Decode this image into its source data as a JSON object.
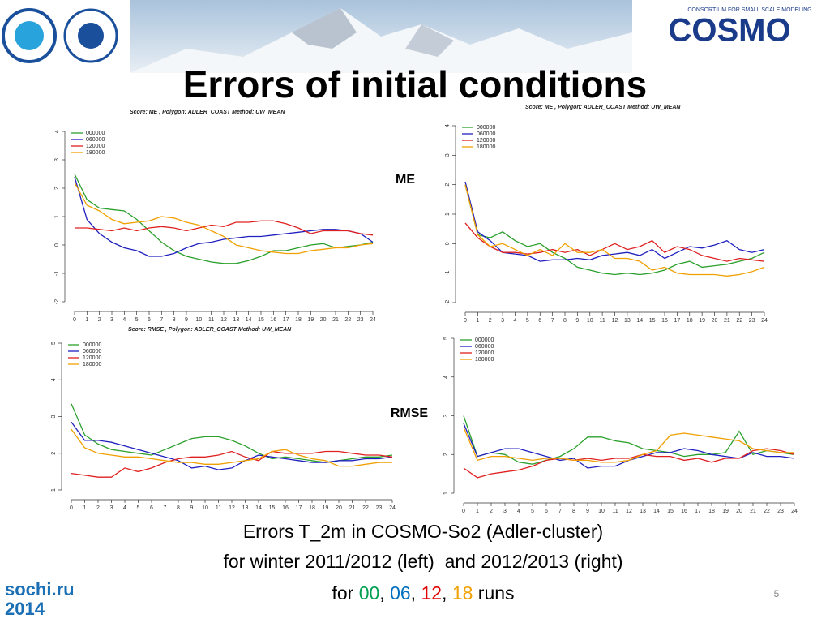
{
  "slide": {
    "title": "Errors of initial conditions",
    "label_me": "ME",
    "label_rmse": "RMSE",
    "caption_line1": "Errors T_2m in COSMO-So2 (Adler-cluster)",
    "caption_line2": "for winter 2011/2012 (left)  and 2012/2013 (right)",
    "caption_line3": {
      "parts": [
        "for ",
        "00",
        ", ",
        "06",
        ", ",
        "12",
        ", ",
        "18",
        " runs"
      ],
      "colors": [
        null,
        "#00a050",
        null,
        "#0070c0",
        null,
        "#e00000",
        null,
        "#f0a000",
        null
      ]
    },
    "page_number": "5",
    "logo_cosmo": "COSMO",
    "logo_cosmo_sub": "CONSORTIUM FOR SMALL SCALE MODELING",
    "logo_sochi": "sochi.ru",
    "logo_sochi_year": "2014"
  },
  "chart_data": [
    {
      "type": "line",
      "title": "Score: ME , Polygon: ADLER_COAST Method: UW_MEAN",
      "x": [
        0,
        1,
        2,
        3,
        4,
        5,
        6,
        7,
        8,
        9,
        10,
        11,
        12,
        13,
        14,
        15,
        16,
        17,
        18,
        19,
        20,
        21,
        22,
        23,
        24
      ],
      "xlim": [
        0,
        24
      ],
      "xticks": [
        0,
        1,
        2,
        3,
        4,
        5,
        6,
        7,
        8,
        9,
        10,
        11,
        12,
        13,
        14,
        15,
        16,
        17,
        18,
        19,
        20,
        21,
        22,
        23,
        24
      ],
      "ylim": [
        -2,
        4
      ],
      "yticks": [
        -2,
        -1,
        0,
        1,
        2,
        3,
        4
      ],
      "series": [
        {
          "name": "000000",
          "color": "#2ca02c",
          "values": [
            2.5,
            1.6,
            1.3,
            1.25,
            1.2,
            0.9,
            0.5,
            0.1,
            -0.2,
            -0.4,
            -0.5,
            -0.6,
            -0.65,
            -0.65,
            -0.55,
            -0.4,
            -0.2,
            -0.2,
            -0.1,
            0,
            0.05,
            -0.1,
            -0.05,
            0,
            0.1
          ]
        },
        {
          "name": "060000",
          "color": "#2020c0",
          "values": [
            2.4,
            0.9,
            0.4,
            0.1,
            -0.1,
            -0.2,
            -0.4,
            -0.4,
            -0.3,
            -0.1,
            0.05,
            0.1,
            0.2,
            0.25,
            0.3,
            0.3,
            0.35,
            0.4,
            0.45,
            0.5,
            0.55,
            0.55,
            0.5,
            0.4,
            0.1
          ]
        },
        {
          "name": "120000",
          "color": "#e02020",
          "values": [
            0.6,
            0.6,
            0.55,
            0.5,
            0.6,
            0.5,
            0.6,
            0.65,
            0.6,
            0.5,
            0.6,
            0.7,
            0.65,
            0.8,
            0.8,
            0.85,
            0.85,
            0.75,
            0.6,
            0.4,
            0.5,
            0.5,
            0.5,
            0.4,
            0.35
          ]
        },
        {
          "name": "180000",
          "color": "#f0a000",
          "values": [
            2.2,
            1.4,
            1.2,
            0.9,
            0.75,
            0.8,
            0.85,
            1.0,
            0.95,
            0.8,
            0.7,
            0.5,
            0.3,
            0.0,
            -0.1,
            -0.2,
            -0.25,
            -0.3,
            -0.3,
            -0.2,
            -0.15,
            -0.1,
            -0.1,
            0.0,
            0.05
          ]
        }
      ]
    },
    {
      "type": "line",
      "title": "Score: ME , Polygon: ADLER_COAST Method: UW_MEAN",
      "x": [
        0,
        1,
        2,
        3,
        4,
        5,
        6,
        7,
        8,
        9,
        10,
        11,
        12,
        13,
        14,
        15,
        16,
        17,
        18,
        19,
        20,
        21,
        22,
        23,
        24
      ],
      "xlim": [
        0,
        24
      ],
      "xticks": [
        0,
        1,
        2,
        3,
        4,
        5,
        6,
        7,
        8,
        9,
        10,
        11,
        12,
        13,
        14,
        15,
        16,
        17,
        18,
        19,
        20,
        21,
        22,
        23,
        24
      ],
      "ylim": [
        -2,
        4
      ],
      "yticks": [
        -2,
        -1,
        0,
        1,
        2,
        3,
        4
      ],
      "series": [
        {
          "name": "000000",
          "color": "#2ca02c",
          "values": [
            2.0,
            0.3,
            0.2,
            0.4,
            0.1,
            -0.1,
            0,
            -0.3,
            -0.5,
            -0.8,
            -0.9,
            -1.0,
            -1.05,
            -1.0,
            -1.05,
            -1.0,
            -0.9,
            -0.7,
            -0.6,
            -0.8,
            -0.75,
            -0.7,
            -0.6,
            -0.5,
            -0.3
          ]
        },
        {
          "name": "060000",
          "color": "#2020c0",
          "values": [
            2.1,
            0.4,
            0.1,
            -0.3,
            -0.35,
            -0.4,
            -0.6,
            -0.55,
            -0.55,
            -0.5,
            -0.55,
            -0.4,
            -0.35,
            -0.3,
            -0.4,
            -0.2,
            -0.5,
            -0.3,
            -0.1,
            -0.15,
            -0.05,
            0.1,
            -0.2,
            -0.3,
            -0.2
          ]
        },
        {
          "name": "120000",
          "color": "#e02020",
          "values": [
            0.7,
            0.2,
            -0.1,
            -0.3,
            -0.3,
            -0.35,
            -0.3,
            -0.2,
            -0.3,
            -0.2,
            -0.4,
            -0.2,
            0,
            -0.2,
            -0.1,
            0.1,
            -0.3,
            -0.1,
            -0.2,
            -0.4,
            -0.5,
            -0.6,
            -0.5,
            -0.55,
            -0.6
          ]
        },
        {
          "name": "180000",
          "color": "#f0a000",
          "values": [
            2.0,
            0.3,
            -0.1,
            0,
            -0.2,
            -0.4,
            -0.2,
            -0.4,
            0.0,
            -0.3,
            -0.3,
            -0.2,
            -0.5,
            -0.5,
            -0.6,
            -0.9,
            -0.8,
            -1.0,
            -1.05,
            -1.05,
            -1.05,
            -1.1,
            -1.05,
            -0.95,
            -0.8
          ]
        }
      ]
    },
    {
      "type": "line",
      "title": "Score: RMSE , Polygon: ADLER_COAST Method: UW_MEAN",
      "x": [
        0,
        1,
        2,
        3,
        4,
        5,
        6,
        7,
        8,
        9,
        10,
        11,
        12,
        13,
        14,
        15,
        16,
        17,
        18,
        19,
        20,
        21,
        22,
        23,
        24
      ],
      "xlim": [
        0,
        24
      ],
      "xticks": [
        0,
        1,
        2,
        3,
        4,
        5,
        6,
        7,
        8,
        9,
        10,
        11,
        12,
        13,
        14,
        15,
        16,
        17,
        18,
        19,
        20,
        21,
        22,
        23,
        24
      ],
      "ylim": [
        1,
        5
      ],
      "yticks": [
        1,
        2,
        3,
        4,
        5
      ],
      "series": [
        {
          "name": "000000",
          "color": "#2ca02c",
          "values": [
            3.35,
            2.5,
            2.25,
            2.1,
            2.05,
            2.0,
            1.95,
            2.1,
            2.25,
            2.4,
            2.45,
            2.45,
            2.35,
            2.2,
            2.0,
            1.85,
            1.9,
            1.85,
            1.8,
            1.75,
            1.8,
            1.85,
            1.9,
            1.9,
            1.95
          ]
        },
        {
          "name": "060000",
          "color": "#2020c0",
          "values": [
            2.85,
            2.35,
            2.35,
            2.3,
            2.2,
            2.1,
            2.0,
            1.9,
            1.8,
            1.6,
            1.65,
            1.55,
            1.6,
            1.8,
            1.95,
            1.9,
            1.85,
            1.8,
            1.75,
            1.75,
            1.8,
            1.8,
            1.85,
            1.85,
            1.9
          ]
        },
        {
          "name": "120000",
          "color": "#e02020",
          "values": [
            1.45,
            1.4,
            1.35,
            1.35,
            1.6,
            1.5,
            1.6,
            1.75,
            1.85,
            1.9,
            1.9,
            1.95,
            2.05,
            1.9,
            1.8,
            2.05,
            2.0,
            2.0,
            2.0,
            2.05,
            2.05,
            2.0,
            1.95,
            1.95,
            1.9
          ]
        },
        {
          "name": "180000",
          "color": "#f0a000",
          "values": [
            2.65,
            2.15,
            2.0,
            1.95,
            1.9,
            1.9,
            1.85,
            1.8,
            1.75,
            1.75,
            1.7,
            1.7,
            1.75,
            1.8,
            1.85,
            2.05,
            2.1,
            1.95,
            1.85,
            1.8,
            1.65,
            1.65,
            1.7,
            1.75,
            1.75
          ]
        }
      ]
    },
    {
      "type": "line",
      "x": [
        0,
        1,
        2,
        3,
        4,
        5,
        6,
        7,
        8,
        9,
        10,
        11,
        12,
        13,
        14,
        15,
        16,
        17,
        18,
        19,
        20,
        21,
        22,
        23,
        24
      ],
      "xlim": [
        0,
        24
      ],
      "xticks": [
        0,
        1,
        2,
        3,
        4,
        5,
        6,
        7,
        8,
        9,
        10,
        11,
        12,
        13,
        14,
        15,
        16,
        17,
        18,
        19,
        20,
        21,
        22,
        23,
        24
      ],
      "ylim": [
        1,
        5
      ],
      "yticks": [
        1,
        2,
        3,
        4,
        5
      ],
      "series": [
        {
          "name": "000000",
          "color": "#2ca02c",
          "values": [
            3.0,
            1.95,
            2.05,
            2.0,
            1.8,
            1.75,
            1.85,
            1.95,
            2.15,
            2.45,
            2.45,
            2.35,
            2.3,
            2.15,
            2.1,
            2.05,
            1.95,
            2.0,
            2.0,
            2.05,
            2.6,
            2.0,
            2.1,
            2.05,
            2.0
          ]
        },
        {
          "name": "060000",
          "color": "#2020c0",
          "values": [
            2.8,
            1.95,
            2.05,
            2.15,
            2.15,
            2.05,
            1.95,
            1.85,
            1.9,
            1.65,
            1.7,
            1.7,
            1.85,
            1.95,
            2.05,
            2.05,
            2.15,
            2.1,
            2.0,
            1.95,
            1.9,
            2.05,
            1.95,
            1.95,
            1.9
          ]
        },
        {
          "name": "120000",
          "color": "#e02020",
          "values": [
            1.65,
            1.4,
            1.5,
            1.55,
            1.6,
            1.7,
            1.85,
            1.9,
            1.85,
            1.9,
            1.85,
            1.9,
            1.9,
            2.0,
            1.95,
            1.95,
            1.85,
            1.9,
            1.8,
            1.9,
            1.9,
            2.1,
            2.15,
            2.1,
            2.0
          ]
        },
        {
          "name": "180000",
          "color": "#f0a000",
          "values": [
            2.7,
            1.85,
            1.95,
            1.95,
            1.9,
            1.85,
            1.9,
            1.9,
            1.85,
            1.85,
            1.8,
            1.8,
            1.85,
            2.0,
            2.1,
            2.5,
            2.55,
            2.5,
            2.45,
            2.4,
            2.35,
            2.15,
            2.1,
            2.05,
            2.05
          ]
        }
      ]
    }
  ]
}
